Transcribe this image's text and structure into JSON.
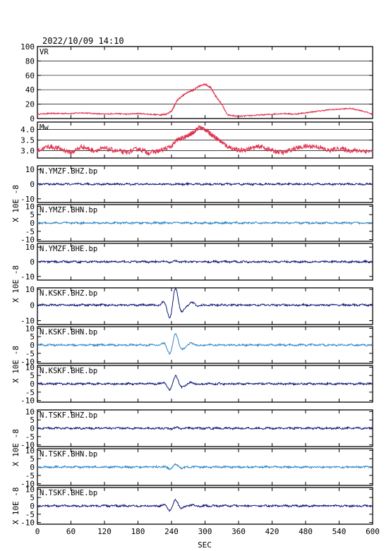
{
  "header": {
    "timestamp": "2022/10/09  14:10"
  },
  "chart_data": {
    "type": "line",
    "xlabel": "SEC",
    "xlim": [
      0,
      600
    ],
    "xticks": [
      0,
      60,
      120,
      180,
      240,
      300,
      360,
      420,
      480,
      540,
      600
    ],
    "ylabel_waveform": "X 10E -8",
    "colors": {
      "vr": "#e0304e",
      "mw": "#e0304e",
      "navy": "#101878",
      "lightblue": "#2d86c8"
    },
    "panels": [
      {
        "id": "vr",
        "label": "VR",
        "kind": "curve",
        "ylim": [
          0,
          100
        ],
        "yticks": [
          "0",
          "20",
          "40",
          "60",
          "80",
          "100"
        ],
        "grid": true,
        "color": "vr",
        "x": [
          0,
          20,
          40,
          60,
          80,
          100,
          120,
          140,
          160,
          180,
          200,
          220,
          230,
          240,
          250,
          260,
          270,
          280,
          290,
          300,
          310,
          320,
          330,
          340,
          360,
          380,
          400,
          420,
          440,
          460,
          480,
          500,
          520,
          540,
          560,
          580,
          600
        ],
        "y": [
          6,
          7,
          7,
          7,
          8,
          7,
          6,
          7,
          6,
          7,
          6,
          5,
          6,
          10,
          25,
          32,
          37,
          40,
          45,
          48,
          43,
          30,
          20,
          5,
          3,
          4,
          5,
          6,
          7,
          6,
          8,
          10,
          12,
          13,
          14,
          11,
          6
        ]
      },
      {
        "id": "mw",
        "label": "Mw",
        "kind": "curve",
        "ylim": [
          2.65,
          4.35
        ],
        "yticks": [
          "3.0",
          "3.5",
          "4.0"
        ],
        "grid": true,
        "color": "mw",
        "x": [
          0,
          20,
          40,
          60,
          80,
          100,
          120,
          140,
          160,
          180,
          200,
          220,
          240,
          250,
          260,
          270,
          280,
          290,
          300,
          310,
          320,
          330,
          340,
          360,
          380,
          400,
          420,
          440,
          460,
          480,
          500,
          520,
          540,
          560,
          580,
          600
        ],
        "y": [
          3.0,
          3.2,
          3.1,
          2.9,
          3.2,
          3.0,
          3.1,
          3.0,
          2.9,
          3.1,
          2.9,
          3.0,
          3.2,
          3.5,
          3.6,
          3.7,
          3.9,
          4.1,
          4.0,
          3.8,
          3.6,
          3.4,
          3.2,
          3.0,
          3.1,
          3.2,
          3.0,
          2.9,
          3.1,
          3.2,
          3.2,
          3.0,
          3.1,
          3.0,
          3.0,
          2.95
        ]
      },
      {
        "id": "ymzf-bhz",
        "label": "N.YMZF.BHZ.bp",
        "kind": "wave",
        "ylim": [
          -12.5,
          12.5
        ],
        "yticks": [
          "10",
          "0",
          "-10"
        ],
        "color": "navy",
        "amp": 0
      },
      {
        "id": "ymzf-bhn",
        "label": "N.YMZF.BHN.bp",
        "kind": "wave",
        "ylim": [
          -11,
          11
        ],
        "yticks": [
          "10",
          "5",
          "0",
          "-5",
          "-10"
        ],
        "color": "lightblue",
        "amp": 0
      },
      {
        "id": "ymzf-bhe",
        "label": "N.YMZF.BHE.bp",
        "kind": "wave",
        "ylim": [
          -12.5,
          12.5
        ],
        "yticks": [
          "10",
          "0",
          "-10"
        ],
        "color": "navy",
        "amp": 0.5
      },
      {
        "id": "kskf-bhz",
        "label": "N.KSKF.BHZ.bp",
        "kind": "wave",
        "ylim": [
          -12.5,
          11
        ],
        "yticks": [
          "10",
          "0",
          "-10"
        ],
        "color": "navy",
        "amp": 11
      },
      {
        "id": "kskf-bhn",
        "label": "N.KSKF.BHN.bp",
        "kind": "wave",
        "ylim": [
          -11,
          11
        ],
        "yticks": [
          "10",
          "5",
          "0",
          "-5",
          "-10"
        ],
        "color": "lightblue",
        "amp": 7
      },
      {
        "id": "kskf-bhe",
        "label": "N.KSKF.BHE.bp",
        "kind": "wave",
        "ylim": [
          -11,
          11
        ],
        "yticks": [
          "10",
          "5",
          "0",
          "-5",
          "-10"
        ],
        "color": "navy",
        "amp": 5
      },
      {
        "id": "tskf-bhz",
        "label": "N.TSKF.BHZ.bp",
        "kind": "wave",
        "ylim": [
          -11,
          11
        ],
        "yticks": [
          "10",
          "5",
          "0",
          "-5",
          "-10"
        ],
        "color": "navy",
        "amp": 0.5
      },
      {
        "id": "tskf-bhn",
        "label": "N.TSKF.BHN.bp",
        "kind": "wave",
        "ylim": [
          -11,
          11
        ],
        "yticks": [
          "10",
          "5",
          "0",
          "-5",
          "-10"
        ],
        "color": "lightblue",
        "amp": 1.5
      },
      {
        "id": "tskf-bhe",
        "label": "N.TSKF.BHE.bp",
        "kind": "wave",
        "ylim": [
          -11,
          11
        ],
        "yticks": [
          "10",
          "5",
          "0",
          "-5",
          "-10"
        ],
        "color": "navy",
        "amp": 3.5
      }
    ]
  }
}
